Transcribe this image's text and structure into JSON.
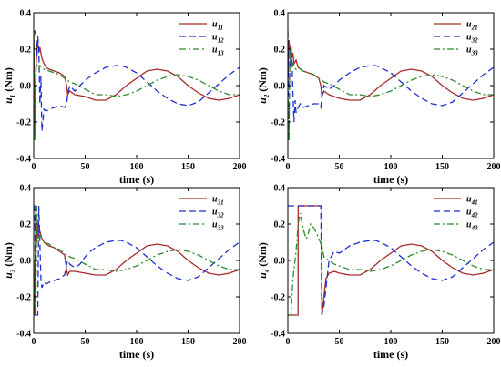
{
  "chart_data": [
    {
      "type": "line",
      "ylabel_main": "u",
      "ylabel_sub": "1",
      "ylabel_unit": " (Nm)",
      "xlabel": "time (s)",
      "xlim": [
        0,
        200
      ],
      "ylim": [
        -0.4,
        0.4
      ],
      "xticks": [
        "0",
        "50",
        "100",
        "150",
        "200"
      ],
      "yticks": [
        "-0.4",
        "-0.2",
        "0.0",
        "0.2",
        "0.4"
      ],
      "legend": "top-right",
      "series": [
        {
          "name_main": "u",
          "name_sub": "11",
          "color": "#a52a2a",
          "style": "solid",
          "x": [
            0,
            1,
            2,
            3,
            4,
            5,
            6,
            8,
            10,
            12,
            15,
            20,
            25,
            30,
            32,
            33,
            35,
            40,
            50,
            60,
            70,
            80,
            90,
            100,
            110,
            120,
            130,
            140,
            150,
            160,
            170,
            180,
            190,
            200
          ],
          "y": [
            0.3,
            -0.28,
            0.05,
            0.2,
            0.24,
            0.18,
            0.21,
            0.15,
            0.12,
            0.1,
            0.09,
            0.08,
            0.07,
            0.05,
            0.0,
            -0.05,
            -0.03,
            -0.05,
            -0.06,
            -0.08,
            -0.08,
            -0.05,
            0.0,
            0.04,
            0.08,
            0.09,
            0.08,
            0.05,
            0.0,
            -0.04,
            -0.07,
            -0.08,
            -0.07,
            -0.05
          ]
        },
        {
          "name_main": "u",
          "name_sub": "12",
          "color": "#1f2fd0",
          "style": "dashed",
          "x": [
            0,
            1,
            2,
            3,
            4,
            5,
            6,
            7,
            8,
            10,
            12,
            15,
            20,
            25,
            30,
            32,
            33,
            35,
            40,
            45,
            50,
            55,
            60,
            70,
            80,
            85,
            90,
            100,
            110,
            120,
            130,
            140,
            150,
            160,
            170,
            180,
            190,
            200
          ],
          "y": [
            0.3,
            0.3,
            0.28,
            0.15,
            0.27,
            0.2,
            -0.1,
            0.05,
            -0.25,
            -0.13,
            -0.14,
            -0.13,
            -0.12,
            -0.11,
            -0.12,
            -0.1,
            -0.05,
            0.0,
            -0.03,
            0.0,
            0.03,
            0.05,
            0.07,
            0.1,
            0.11,
            0.11,
            0.1,
            0.07,
            0.02,
            -0.03,
            -0.07,
            -0.1,
            -0.11,
            -0.09,
            -0.04,
            0.01,
            0.06,
            0.1
          ]
        },
        {
          "name_main": "u",
          "name_sub": "13",
          "color": "#2e8b2e",
          "style": "dashdot",
          "x": [
            0,
            1,
            2,
            3,
            4,
            5,
            6,
            8,
            10,
            15,
            20,
            25,
            30,
            35,
            40,
            50,
            60,
            70,
            80,
            90,
            100,
            110,
            120,
            130,
            140,
            150,
            160,
            170,
            180,
            190,
            200
          ],
          "y": [
            0.3,
            -0.3,
            0.1,
            0.12,
            0.1,
            0.09,
            0.11,
            0.1,
            0.09,
            0.08,
            0.07,
            0.06,
            0.04,
            0.02,
            0.01,
            -0.02,
            -0.05,
            -0.05,
            -0.06,
            -0.05,
            -0.03,
            0.0,
            0.03,
            0.05,
            0.06,
            0.05,
            0.03,
            0.0,
            -0.03,
            -0.05,
            -0.05
          ]
        }
      ]
    },
    {
      "type": "line",
      "ylabel_main": "u",
      "ylabel_sub": "2",
      "ylabel_unit": " (Nm)",
      "xlabel": "time (s)",
      "xlim": [
        0,
        200
      ],
      "ylim": [
        -0.4,
        0.4
      ],
      "xticks": [
        "0",
        "50",
        "100",
        "150",
        "200"
      ],
      "yticks": [
        "-0.4",
        "-0.2",
        "0.0",
        "0.2",
        "0.4"
      ],
      "legend": "top-right",
      "series": [
        {
          "name_main": "u",
          "name_sub": "21",
          "color": "#a52a2a",
          "style": "solid",
          "x": [
            0,
            1,
            2,
            3,
            4,
            5,
            6,
            8,
            10,
            12,
            15,
            20,
            25,
            30,
            32,
            33,
            35,
            40,
            50,
            60,
            70,
            80,
            90,
            100,
            110,
            120,
            130,
            140,
            150,
            160,
            170,
            180,
            190,
            200
          ],
          "y": [
            0.0,
            0.25,
            0.2,
            0.22,
            0.15,
            0.18,
            0.12,
            0.14,
            0.1,
            0.09,
            0.08,
            0.07,
            0.06,
            0.04,
            0.0,
            -0.06,
            -0.03,
            -0.05,
            -0.07,
            -0.08,
            -0.08,
            -0.05,
            0.0,
            0.04,
            0.08,
            0.09,
            0.08,
            0.05,
            0.0,
            -0.04,
            -0.07,
            -0.08,
            -0.07,
            -0.05
          ]
        },
        {
          "name_main": "u",
          "name_sub": "32",
          "color": "#1f2fd0",
          "style": "dashed",
          "x": [
            0,
            1,
            2,
            3,
            4,
            5,
            6,
            7,
            8,
            10,
            12,
            15,
            20,
            25,
            30,
            32,
            33,
            35,
            40,
            45,
            50,
            55,
            60,
            70,
            80,
            85,
            90,
            100,
            110,
            120,
            130,
            140,
            150,
            160,
            170,
            180,
            190,
            200
          ],
          "y": [
            0.3,
            -0.3,
            0.2,
            0.1,
            0.15,
            -0.05,
            -0.2,
            -0.08,
            -0.15,
            -0.12,
            -0.1,
            -0.12,
            -0.11,
            -0.1,
            -0.1,
            -0.12,
            -0.06,
            0.0,
            -0.02,
            0.0,
            0.03,
            0.05,
            0.07,
            0.1,
            0.11,
            0.11,
            0.1,
            0.07,
            0.02,
            -0.03,
            -0.07,
            -0.1,
            -0.11,
            -0.09,
            -0.04,
            0.01,
            0.06,
            0.1
          ]
        },
        {
          "name_main": "u",
          "name_sub": "33",
          "color": "#2e8b2e",
          "style": "dashdot",
          "x": [
            0,
            1,
            2,
            3,
            4,
            5,
            6,
            8,
            10,
            15,
            20,
            25,
            30,
            35,
            40,
            50,
            60,
            70,
            80,
            90,
            100,
            110,
            120,
            130,
            140,
            150,
            160,
            170,
            180,
            190,
            200
          ],
          "y": [
            0.0,
            -0.3,
            0.2,
            0.15,
            0.1,
            0.12,
            0.1,
            0.09,
            0.1,
            0.08,
            0.07,
            0.06,
            0.04,
            0.02,
            0.01,
            -0.02,
            -0.05,
            -0.05,
            -0.06,
            -0.05,
            -0.03,
            0.0,
            0.03,
            0.05,
            0.06,
            0.05,
            0.03,
            0.0,
            -0.03,
            -0.05,
            -0.05
          ]
        }
      ]
    },
    {
      "type": "line",
      "ylabel_main": "u",
      "ylabel_sub": "3",
      "ylabel_unit": " (Nm)",
      "xlabel": "time (s)",
      "xlim": [
        0,
        200
      ],
      "ylim": [
        -0.4,
        0.4
      ],
      "xticks": [
        "0",
        "50",
        "100",
        "150",
        "200"
      ],
      "yticks": [
        "-0.4",
        "-0.2",
        "0.0",
        "0.2",
        "0.4"
      ],
      "legend": "top-right",
      "series": [
        {
          "name_main": "u",
          "name_sub": "31",
          "color": "#a52a2a",
          "style": "solid",
          "x": [
            0,
            1,
            2,
            3,
            4,
            5,
            6,
            8,
            10,
            12,
            15,
            20,
            25,
            30,
            32,
            33,
            35,
            40,
            50,
            60,
            70,
            80,
            90,
            100,
            110,
            120,
            130,
            140,
            150,
            160,
            170,
            180,
            190,
            200
          ],
          "y": [
            0.0,
            -0.3,
            0.28,
            0.1,
            0.2,
            0.15,
            0.16,
            0.12,
            0.1,
            0.09,
            0.08,
            0.07,
            0.05,
            0.03,
            -0.05,
            -0.08,
            -0.06,
            -0.06,
            -0.07,
            -0.08,
            -0.08,
            -0.05,
            0.0,
            0.04,
            0.08,
            0.09,
            0.08,
            0.05,
            0.0,
            -0.04,
            -0.07,
            -0.08,
            -0.07,
            -0.05
          ]
        },
        {
          "name_main": "u",
          "name_sub": "32",
          "color": "#1f2fd0",
          "style": "dashed",
          "x": [
            0,
            1,
            2,
            3,
            4,
            5,
            6,
            7,
            8,
            10,
            12,
            15,
            20,
            25,
            30,
            32,
            33,
            35,
            40,
            45,
            50,
            55,
            60,
            70,
            80,
            85,
            90,
            100,
            110,
            120,
            130,
            140,
            150,
            160,
            170,
            180,
            190,
            200
          ],
          "y": [
            0.3,
            0.3,
            -0.3,
            -0.3,
            -0.3,
            0.3,
            0.1,
            -0.1,
            -0.15,
            -0.12,
            -0.13,
            -0.12,
            -0.11,
            -0.1,
            -0.08,
            -0.02,
            0.0,
            -0.02,
            -0.04,
            -0.02,
            0.02,
            0.05,
            0.07,
            0.1,
            0.11,
            0.11,
            0.1,
            0.07,
            0.02,
            -0.03,
            -0.07,
            -0.1,
            -0.11,
            -0.09,
            -0.04,
            0.01,
            0.06,
            0.1
          ]
        },
        {
          "name_main": "u",
          "name_sub": "33",
          "color": "#2e8b2e",
          "style": "dashdot",
          "x": [
            0,
            1,
            2,
            3,
            4,
            5,
            6,
            8,
            10,
            15,
            20,
            25,
            30,
            35,
            40,
            50,
            60,
            70,
            80,
            90,
            100,
            110,
            120,
            130,
            140,
            150,
            160,
            170,
            180,
            190,
            200
          ],
          "y": [
            0.0,
            -0.3,
            -0.3,
            0.3,
            0.15,
            0.1,
            0.14,
            0.12,
            0.1,
            0.09,
            0.07,
            0.06,
            0.04,
            0.02,
            0.01,
            -0.02,
            -0.05,
            -0.05,
            -0.06,
            -0.05,
            -0.03,
            0.0,
            0.03,
            0.05,
            0.06,
            0.05,
            0.03,
            0.0,
            -0.03,
            -0.05,
            -0.05
          ]
        }
      ]
    },
    {
      "type": "line",
      "ylabel_main": "u",
      "ylabel_sub": "4",
      "ylabel_unit": " (Nm)",
      "xlabel": "time (s)",
      "xlim": [
        0,
        200
      ],
      "ylim": [
        -0.4,
        0.4
      ],
      "xticks": [
        "0",
        "50",
        "100",
        "150",
        "200"
      ],
      "yticks": [
        "-0.4",
        "-0.2",
        "0.0",
        "0.2",
        "0.4"
      ],
      "legend": "top-right",
      "series": [
        {
          "name_main": "u",
          "name_sub": "41",
          "color": "#a52a2a",
          "style": "solid",
          "x": [
            0,
            5,
            9.9,
            10,
            33,
            33.1,
            35,
            37,
            40,
            45,
            50,
            60,
            70,
            80,
            90,
            100,
            110,
            120,
            130,
            140,
            150,
            160,
            170,
            180,
            190,
            200
          ],
          "y": [
            -0.3,
            -0.3,
            -0.3,
            0.3,
            0.3,
            -0.3,
            -0.2,
            -0.1,
            -0.07,
            -0.06,
            -0.07,
            -0.08,
            -0.08,
            -0.05,
            0.0,
            0.04,
            0.08,
            0.09,
            0.08,
            0.05,
            0.0,
            -0.04,
            -0.07,
            -0.08,
            -0.07,
            -0.05
          ]
        },
        {
          "name_main": "u",
          "name_sub": "42",
          "color": "#1f2fd0",
          "style": "dashed",
          "x": [
            0,
            1,
            2,
            3,
            4,
            5,
            6,
            7,
            8,
            10,
            12,
            15,
            20,
            25,
            30,
            32,
            33,
            35,
            40,
            45,
            50,
            55,
            60,
            70,
            80,
            85,
            90,
            100,
            110,
            120,
            130,
            140,
            150,
            160,
            170,
            180,
            190,
            200
          ],
          "y": [
            0.3,
            0.3,
            0.3,
            0.3,
            0.3,
            0.3,
            0.3,
            0.3,
            0.3,
            0.3,
            0.3,
            0.3,
            0.3,
            0.3,
            0.3,
            0.3,
            -0.3,
            -0.25,
            0.0,
            0.05,
            0.04,
            0.06,
            0.08,
            0.1,
            0.11,
            0.11,
            0.1,
            0.07,
            0.02,
            -0.03,
            -0.07,
            -0.1,
            -0.11,
            -0.09,
            -0.04,
            0.01,
            0.06,
            0.1
          ]
        },
        {
          "name_main": "u",
          "name_sub": "43",
          "color": "#2e8b2e",
          "style": "dashdot",
          "x": [
            0,
            3,
            5,
            8,
            10,
            12,
            14,
            16,
            18,
            20,
            22,
            25,
            28,
            30,
            33,
            35,
            40,
            45,
            50,
            60,
            70,
            80,
            90,
            100,
            110,
            120,
            130,
            140,
            150,
            160,
            170,
            180,
            190,
            200
          ],
          "y": [
            -0.3,
            -0.3,
            -0.1,
            0.05,
            0.2,
            0.26,
            0.2,
            0.15,
            0.12,
            0.15,
            0.2,
            0.18,
            0.15,
            0.12,
            0.08,
            0.02,
            0.0,
            -0.02,
            -0.03,
            -0.05,
            -0.05,
            -0.06,
            -0.05,
            -0.03,
            0.0,
            0.03,
            0.05,
            0.06,
            0.05,
            0.03,
            0.0,
            -0.03,
            -0.05,
            -0.05
          ]
        }
      ]
    }
  ]
}
